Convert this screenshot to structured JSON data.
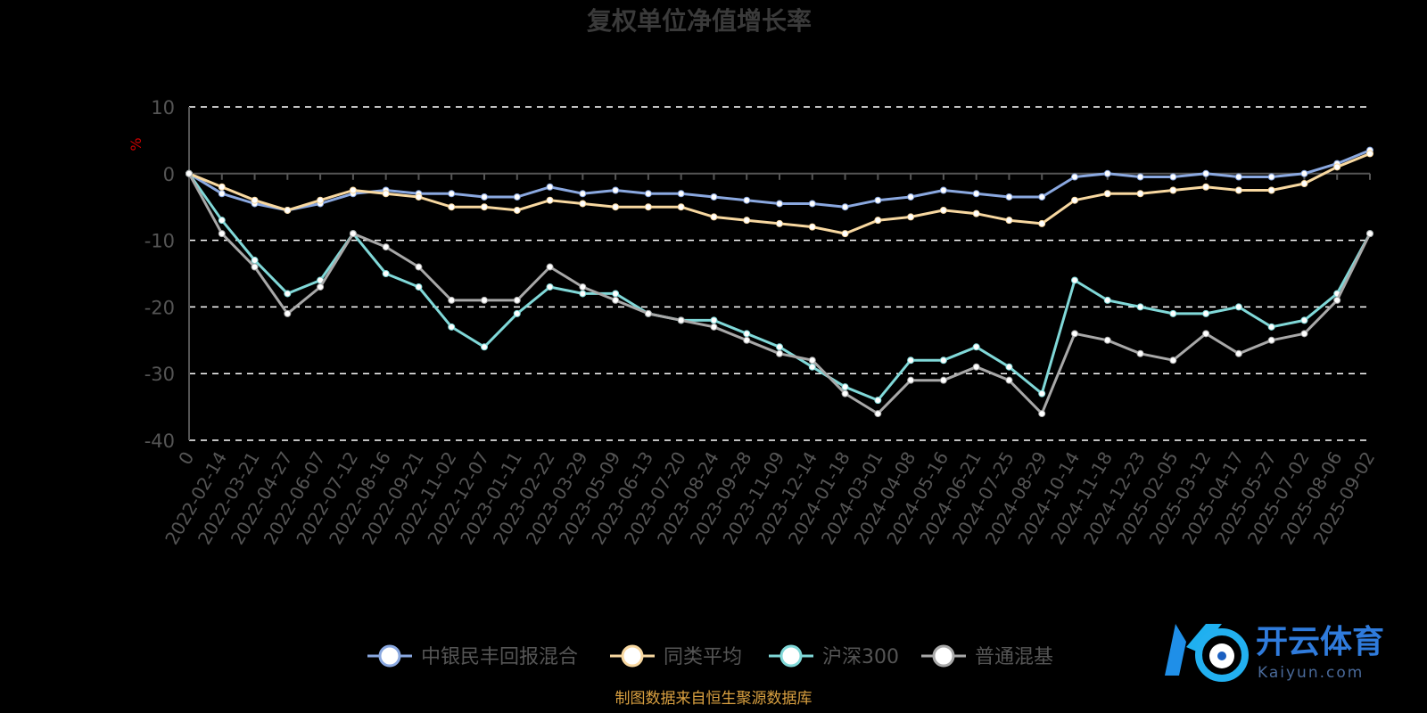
{
  "chart_data": {
    "type": "line",
    "title": "复权单位净值增长率",
    "ylabel": "%",
    "ylim": [
      -40,
      10
    ],
    "yticks": [
      10,
      0,
      -10,
      -20,
      -30,
      -40
    ],
    "grid": true,
    "legend_position": "bottom",
    "categories": [
      "0",
      "2022-02-14",
      "2022-03-21",
      "2022-04-27",
      "2022-06-07",
      "2022-07-12",
      "2022-08-16",
      "2022-09-21",
      "2022-11-02",
      "2022-12-07",
      "2023-01-11",
      "2023-02-22",
      "2023-03-29",
      "2023-05-09",
      "2023-06-13",
      "2023-07-20",
      "2023-08-24",
      "2023-09-28",
      "2023-11-09",
      "2023-12-14",
      "2024-01-18",
      "2024-03-01",
      "2024-04-08",
      "2024-05-16",
      "2024-06-21",
      "2024-07-25",
      "2024-08-29",
      "2024-10-14",
      "2024-11-18",
      "2024-12-23",
      "2025-02-05",
      "2025-03-12",
      "2025-04-17",
      "2025-05-27",
      "2025-07-02",
      "2025-08-06",
      "2025-09-02"
    ],
    "series": [
      {
        "name": "中银民丰回报混合",
        "color": "#8aa8e0",
        "values": [
          0,
          -3,
          -4.5,
          -5.5,
          -4.5,
          -3,
          -2.5,
          -3,
          -3,
          -3.5,
          -3.5,
          -2,
          -3,
          -2.5,
          -3,
          -3,
          -3.5,
          -4,
          -4.5,
          -4.5,
          -5,
          -4,
          -3.5,
          -2.5,
          -3,
          -3.5,
          -3.5,
          -0.5,
          0,
          -0.5,
          -0.5,
          0,
          -0.5,
          -0.5,
          0,
          1.5,
          3.5
        ]
      },
      {
        "name": "同类平均",
        "color": "#f8d8a0",
        "values": [
          0,
          -2,
          -4,
          -5.5,
          -4,
          -2.5,
          -3,
          -3.5,
          -5,
          -5,
          -5.5,
          -4,
          -4.5,
          -5,
          -5,
          -5,
          -6.5,
          -7,
          -7.5,
          -8,
          -9,
          -7,
          -6.5,
          -5.5,
          -6,
          -7,
          -7.5,
          -4,
          -3,
          -3,
          -2.5,
          -2,
          -2.5,
          -2.5,
          -1.5,
          1,
          3
        ]
      },
      {
        "name": "沪深300",
        "color": "#80d8d8",
        "values": [
          0,
          -7,
          -13,
          -18,
          -16,
          -9,
          -15,
          -17,
          -23,
          -26,
          -21,
          -17,
          -18,
          -18,
          -21,
          -22,
          -22,
          -24,
          -26,
          -29,
          -32,
          -34,
          -28,
          -28,
          -26,
          -29,
          -33,
          -16,
          -19,
          -20,
          -21,
          -21,
          -20,
          -23,
          -22,
          -18,
          -9
        ]
      },
      {
        "name": "普通混基",
        "color": "#a8a8a8",
        "values": [
          0,
          -9,
          -14,
          -21,
          -17,
          -9,
          -11,
          -14,
          -19,
          -19,
          -19,
          -14,
          -17,
          -19,
          -21,
          -22,
          -23,
          -25,
          -27,
          -28,
          -33,
          -36,
          -31,
          -31,
          -29,
          -31,
          -36,
          -24,
          -25,
          -27,
          -28,
          -24,
          -27,
          -25,
          -24,
          -19,
          -9
        ]
      }
    ]
  },
  "source_note": "制图数据来自恒生聚源数据库",
  "logo": {
    "name": "开云体育",
    "sub": "Kaiyun.com"
  }
}
